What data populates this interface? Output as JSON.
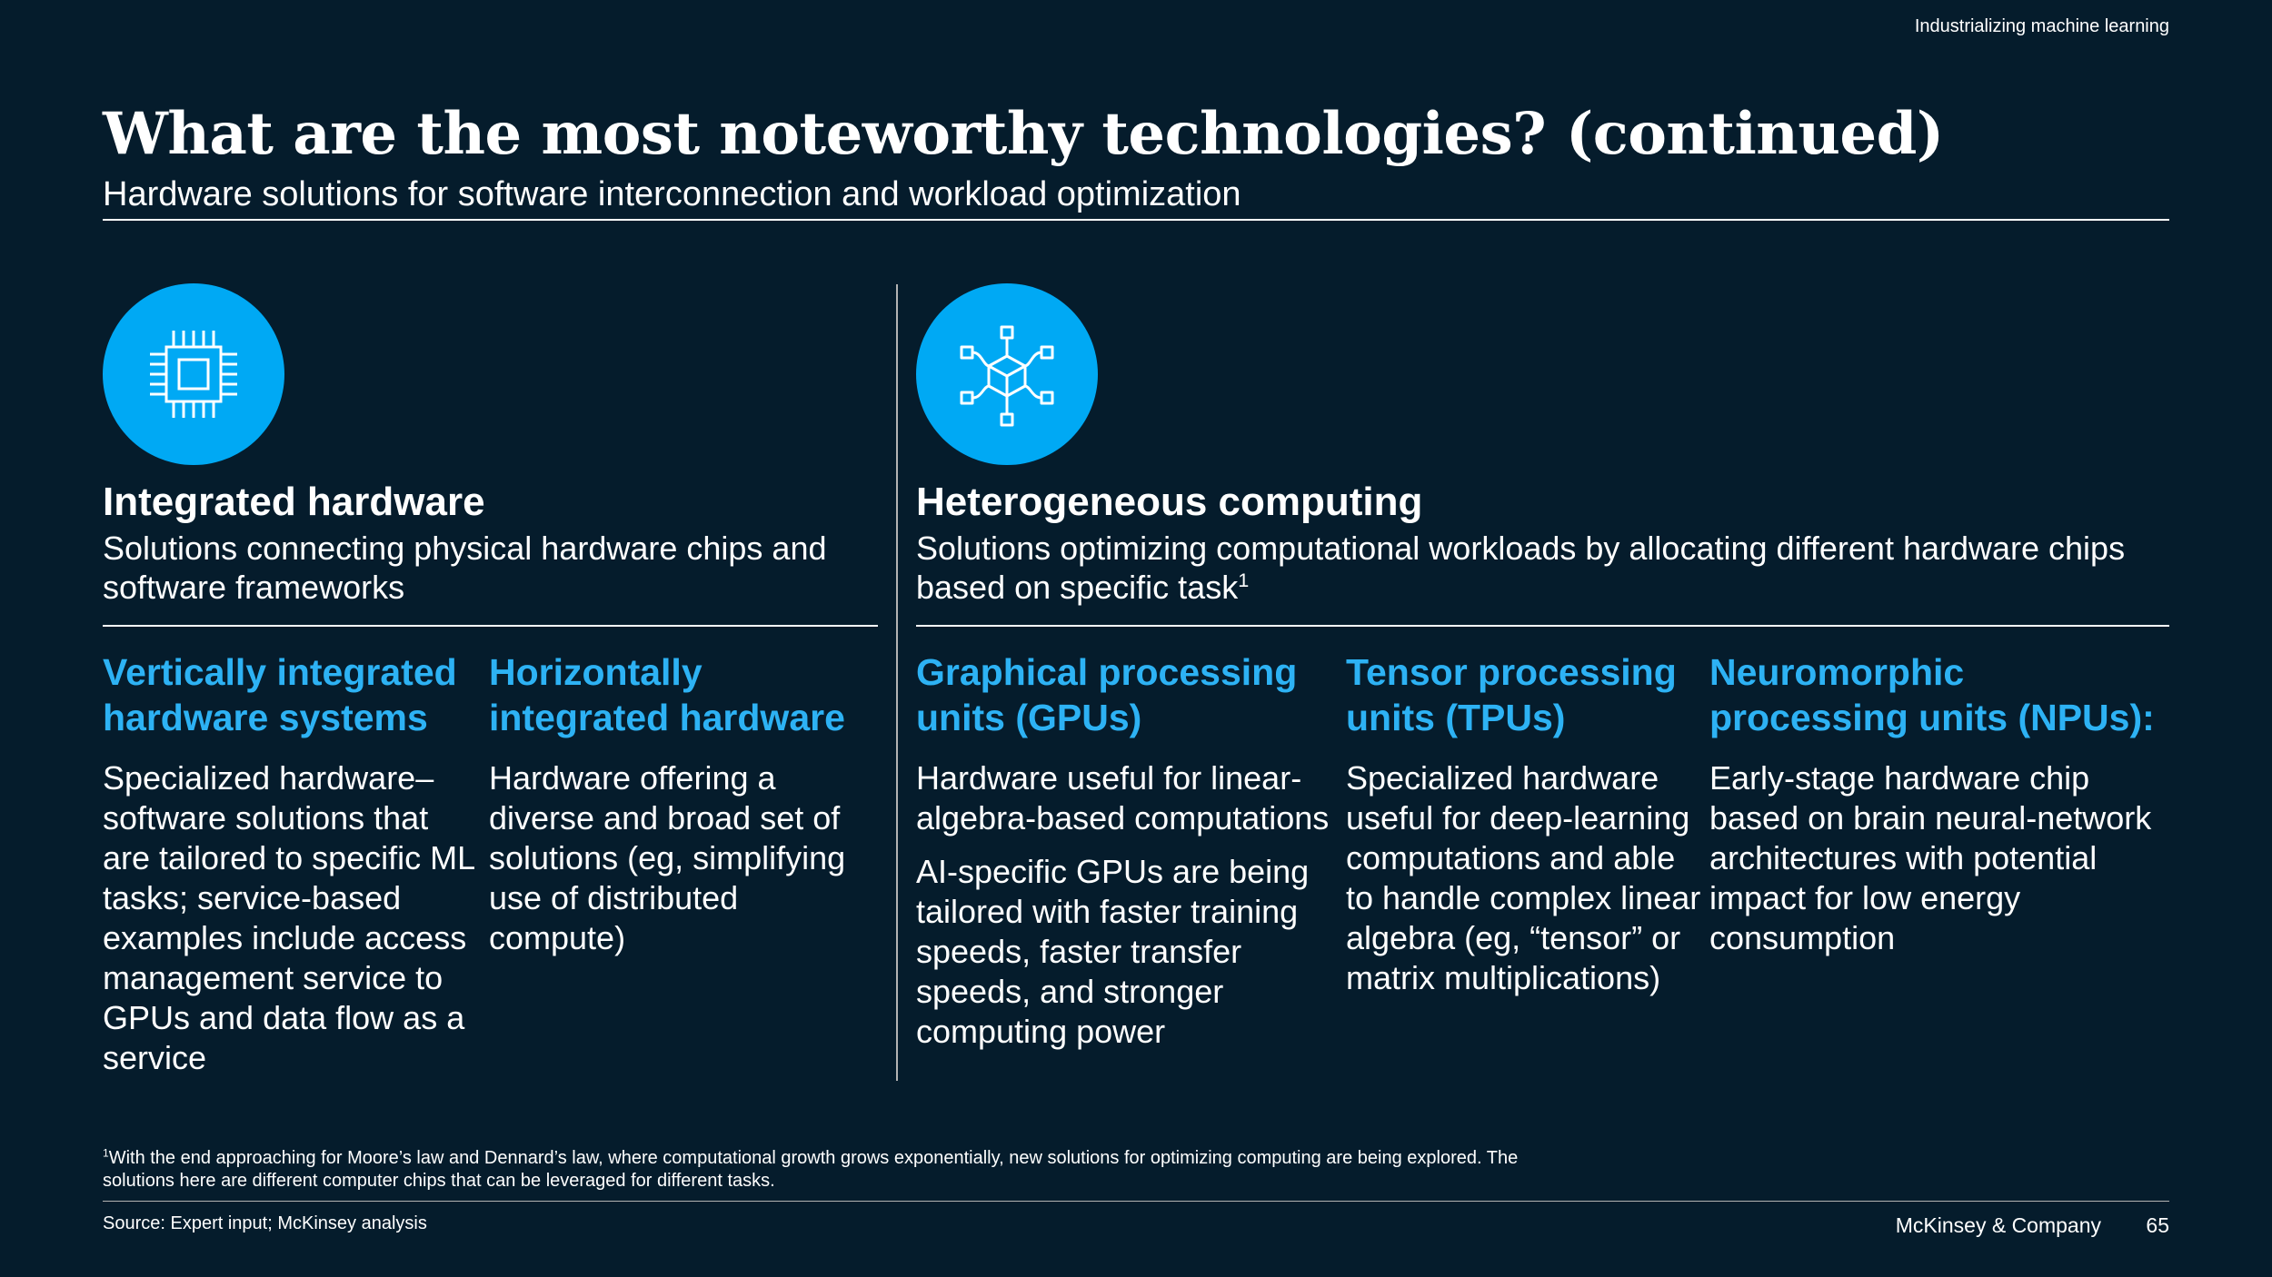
{
  "header": {
    "label": "Industrializing machine learning"
  },
  "title": "What are the most noteworthy technologies? (continued)",
  "subtitle": "Hardware solutions for software interconnection and workload optimization",
  "left_section": {
    "icon": "chip-icon",
    "title": "Integrated hardware",
    "description": "Solutions connecting physical hardware chips and software frameworks",
    "columns": [
      {
        "title_line1": "Vertically integrated",
        "title_line2": "hardware systems",
        "body": [
          "Specialized hardware–software solutions that are tailored to specific ML tasks; service-based examples include access management service to GPUs and data flow as a service"
        ]
      },
      {
        "title_line1": "Horizontally",
        "title_line2": "integrated hardware",
        "body": [
          "Hardware offering a diverse and broad set of solutions (eg, simplifying use of distributed compute)"
        ]
      }
    ]
  },
  "right_section": {
    "icon": "cube-network-icon",
    "title": "Heterogeneous computing",
    "description": "Solutions optimizing computational workloads by allocating different hardware chips based on specific task",
    "description_sup": "1",
    "columns": [
      {
        "title_line1": "Graphical processing",
        "title_line2": "units (GPUs)",
        "body": [
          "Hardware useful for linear-algebra-based computations",
          "AI-specific GPUs are being tailored with faster training speeds, faster transfer speeds, and stronger computing power"
        ]
      },
      {
        "title_line1": "Tensor processing",
        "title_line2": "units (TPUs)",
        "body": [
          "Specialized hardware useful for deep-learning computations and able to handle complex linear algebra (eg, “tensor” or matrix multiplications)"
        ]
      },
      {
        "title_line1": "Neuromorphic",
        "title_line2": "processing units (NPUs):",
        "body": [
          "Early-stage hardware chip based on brain neural-network architectures with potential impact for low energy consumption"
        ]
      }
    ]
  },
  "footnote": {
    "marker": "1",
    "text": "With the end approaching for Moore’s law and Dennard’s law, where computational growth grows exponentially, new solutions for optimizing computing are being explored. The solutions here are different computer chips that can be leveraged for different tasks."
  },
  "footer": {
    "source": "Source: Expert input; McKinsey analysis",
    "company": "McKinsey & Company",
    "page_number": "65"
  },
  "colors": {
    "background": "#051C2C",
    "accent": "#00A9F4",
    "heading": "#2DB2F4"
  }
}
